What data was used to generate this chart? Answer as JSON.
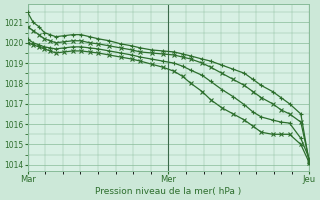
{
  "background_color": "#cce8d8",
  "plot_bg_color": "#d8f0e4",
  "grid_color": "#88bb99",
  "line_color": "#2d6e2d",
  "xlabel": "Pression niveau de la mer( hPa )",
  "ylim": [
    1013.7,
    1021.9
  ],
  "yticks": [
    1014,
    1015,
    1016,
    1017,
    1018,
    1019,
    1020,
    1021
  ],
  "xtick_labels": [
    "Mar",
    "Mer",
    "Jeu"
  ],
  "xtick_positions": [
    0,
    0.5,
    1.0
  ],
  "figsize": [
    3.2,
    2.0
  ],
  "dpi": 100,
  "lines": [
    {
      "x": [
        0.0,
        0.02,
        0.04,
        0.06,
        0.08,
        0.1,
        0.13,
        0.16,
        0.19,
        0.22,
        0.25,
        0.29,
        0.33,
        0.37,
        0.4,
        0.44,
        0.48,
        0.52,
        0.55,
        0.58,
        0.62,
        0.65,
        0.69,
        0.73,
        0.77,
        0.8,
        0.83,
        0.87,
        0.9,
        0.93,
        0.97,
        1.0
      ],
      "y": [
        1021.5,
        1021.0,
        1020.8,
        1020.5,
        1020.4,
        1020.3,
        1020.35,
        1020.4,
        1020.4,
        1020.3,
        1020.2,
        1020.1,
        1019.95,
        1019.85,
        1019.75,
        1019.65,
        1019.6,
        1019.55,
        1019.45,
        1019.35,
        1019.2,
        1019.1,
        1018.9,
        1018.7,
        1018.5,
        1018.2,
        1017.9,
        1017.6,
        1017.3,
        1017.0,
        1016.5,
        1014.1
      ],
      "marker": "+"
    },
    {
      "x": [
        0.0,
        0.02,
        0.04,
        0.06,
        0.08,
        0.1,
        0.13,
        0.16,
        0.19,
        0.22,
        0.25,
        0.29,
        0.33,
        0.37,
        0.4,
        0.44,
        0.48,
        0.52,
        0.55,
        0.58,
        0.62,
        0.65,
        0.69,
        0.73,
        0.77,
        0.8,
        0.83,
        0.87,
        0.9,
        0.93,
        0.97,
        1.0
      ],
      "y": [
        1020.8,
        1020.6,
        1020.4,
        1020.2,
        1020.1,
        1020.0,
        1020.05,
        1020.1,
        1020.1,
        1020.0,
        1019.95,
        1019.85,
        1019.75,
        1019.65,
        1019.55,
        1019.5,
        1019.45,
        1019.4,
        1019.3,
        1019.2,
        1019.0,
        1018.8,
        1018.5,
        1018.2,
        1017.9,
        1017.6,
        1017.3,
        1017.0,
        1016.7,
        1016.5,
        1016.1,
        1014.2
      ],
      "marker": "x"
    },
    {
      "x": [
        0.0,
        0.02,
        0.04,
        0.06,
        0.08,
        0.1,
        0.13,
        0.16,
        0.19,
        0.22,
        0.25,
        0.29,
        0.33,
        0.37,
        0.4,
        0.44,
        0.48,
        0.52,
        0.55,
        0.58,
        0.62,
        0.65,
        0.69,
        0.73,
        0.77,
        0.8,
        0.83,
        0.87,
        0.9,
        0.93,
        0.97,
        1.0
      ],
      "y": [
        1020.2,
        1020.0,
        1019.9,
        1019.8,
        1019.75,
        1019.7,
        1019.75,
        1019.8,
        1019.8,
        1019.75,
        1019.7,
        1019.6,
        1019.5,
        1019.4,
        1019.3,
        1019.2,
        1019.1,
        1019.0,
        1018.85,
        1018.65,
        1018.4,
        1018.1,
        1017.7,
        1017.35,
        1016.95,
        1016.6,
        1016.35,
        1016.2,
        1016.1,
        1016.05,
        1015.3,
        1014.3
      ],
      "marker": "+"
    },
    {
      "x": [
        0.0,
        0.02,
        0.04,
        0.06,
        0.08,
        0.1,
        0.13,
        0.16,
        0.19,
        0.22,
        0.25,
        0.29,
        0.33,
        0.37,
        0.4,
        0.44,
        0.48,
        0.52,
        0.55,
        0.58,
        0.62,
        0.65,
        0.69,
        0.73,
        0.77,
        0.8,
        0.83,
        0.87,
        0.9,
        0.93,
        0.97,
        1.0
      ],
      "y": [
        1020.0,
        1019.9,
        1019.8,
        1019.7,
        1019.6,
        1019.5,
        1019.55,
        1019.6,
        1019.6,
        1019.55,
        1019.5,
        1019.4,
        1019.3,
        1019.2,
        1019.1,
        1018.95,
        1018.8,
        1018.6,
        1018.35,
        1018.0,
        1017.6,
        1017.2,
        1016.8,
        1016.5,
        1016.2,
        1015.9,
        1015.6,
        1015.5,
        1015.5,
        1015.5,
        1015.0,
        1014.1
      ],
      "marker": "x"
    }
  ]
}
